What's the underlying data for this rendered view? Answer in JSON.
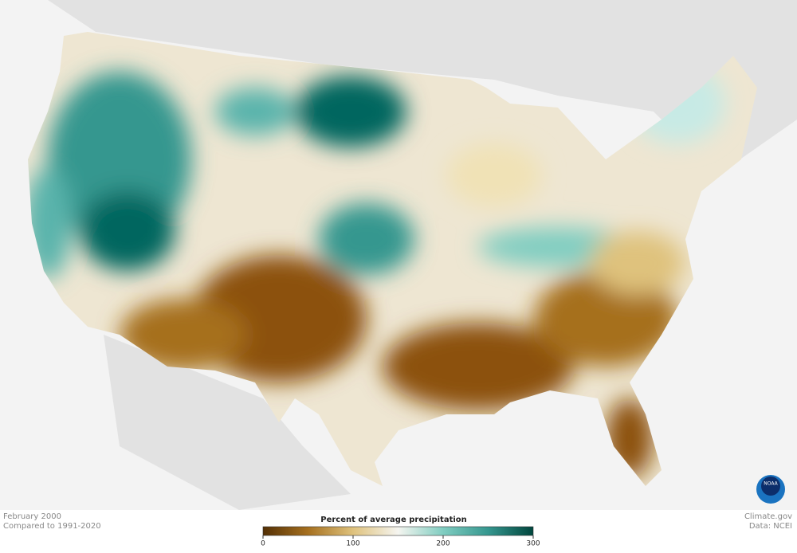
{
  "map": {
    "date": "February 2000",
    "baseline": "Compared to 1991-2020",
    "legend": {
      "title": "Percent of average precipitation",
      "range": [
        0,
        300
      ],
      "ticks": [
        0,
        100,
        200,
        300
      ],
      "colors": [
        "#543005",
        "#a6701f",
        "#dfc27d",
        "#f5f5f0",
        "#80cdc1",
        "#35978f",
        "#01463d"
      ]
    },
    "credit": "Climate.gov",
    "source": "Data: NCEI",
    "logo": "NOAA"
  }
}
